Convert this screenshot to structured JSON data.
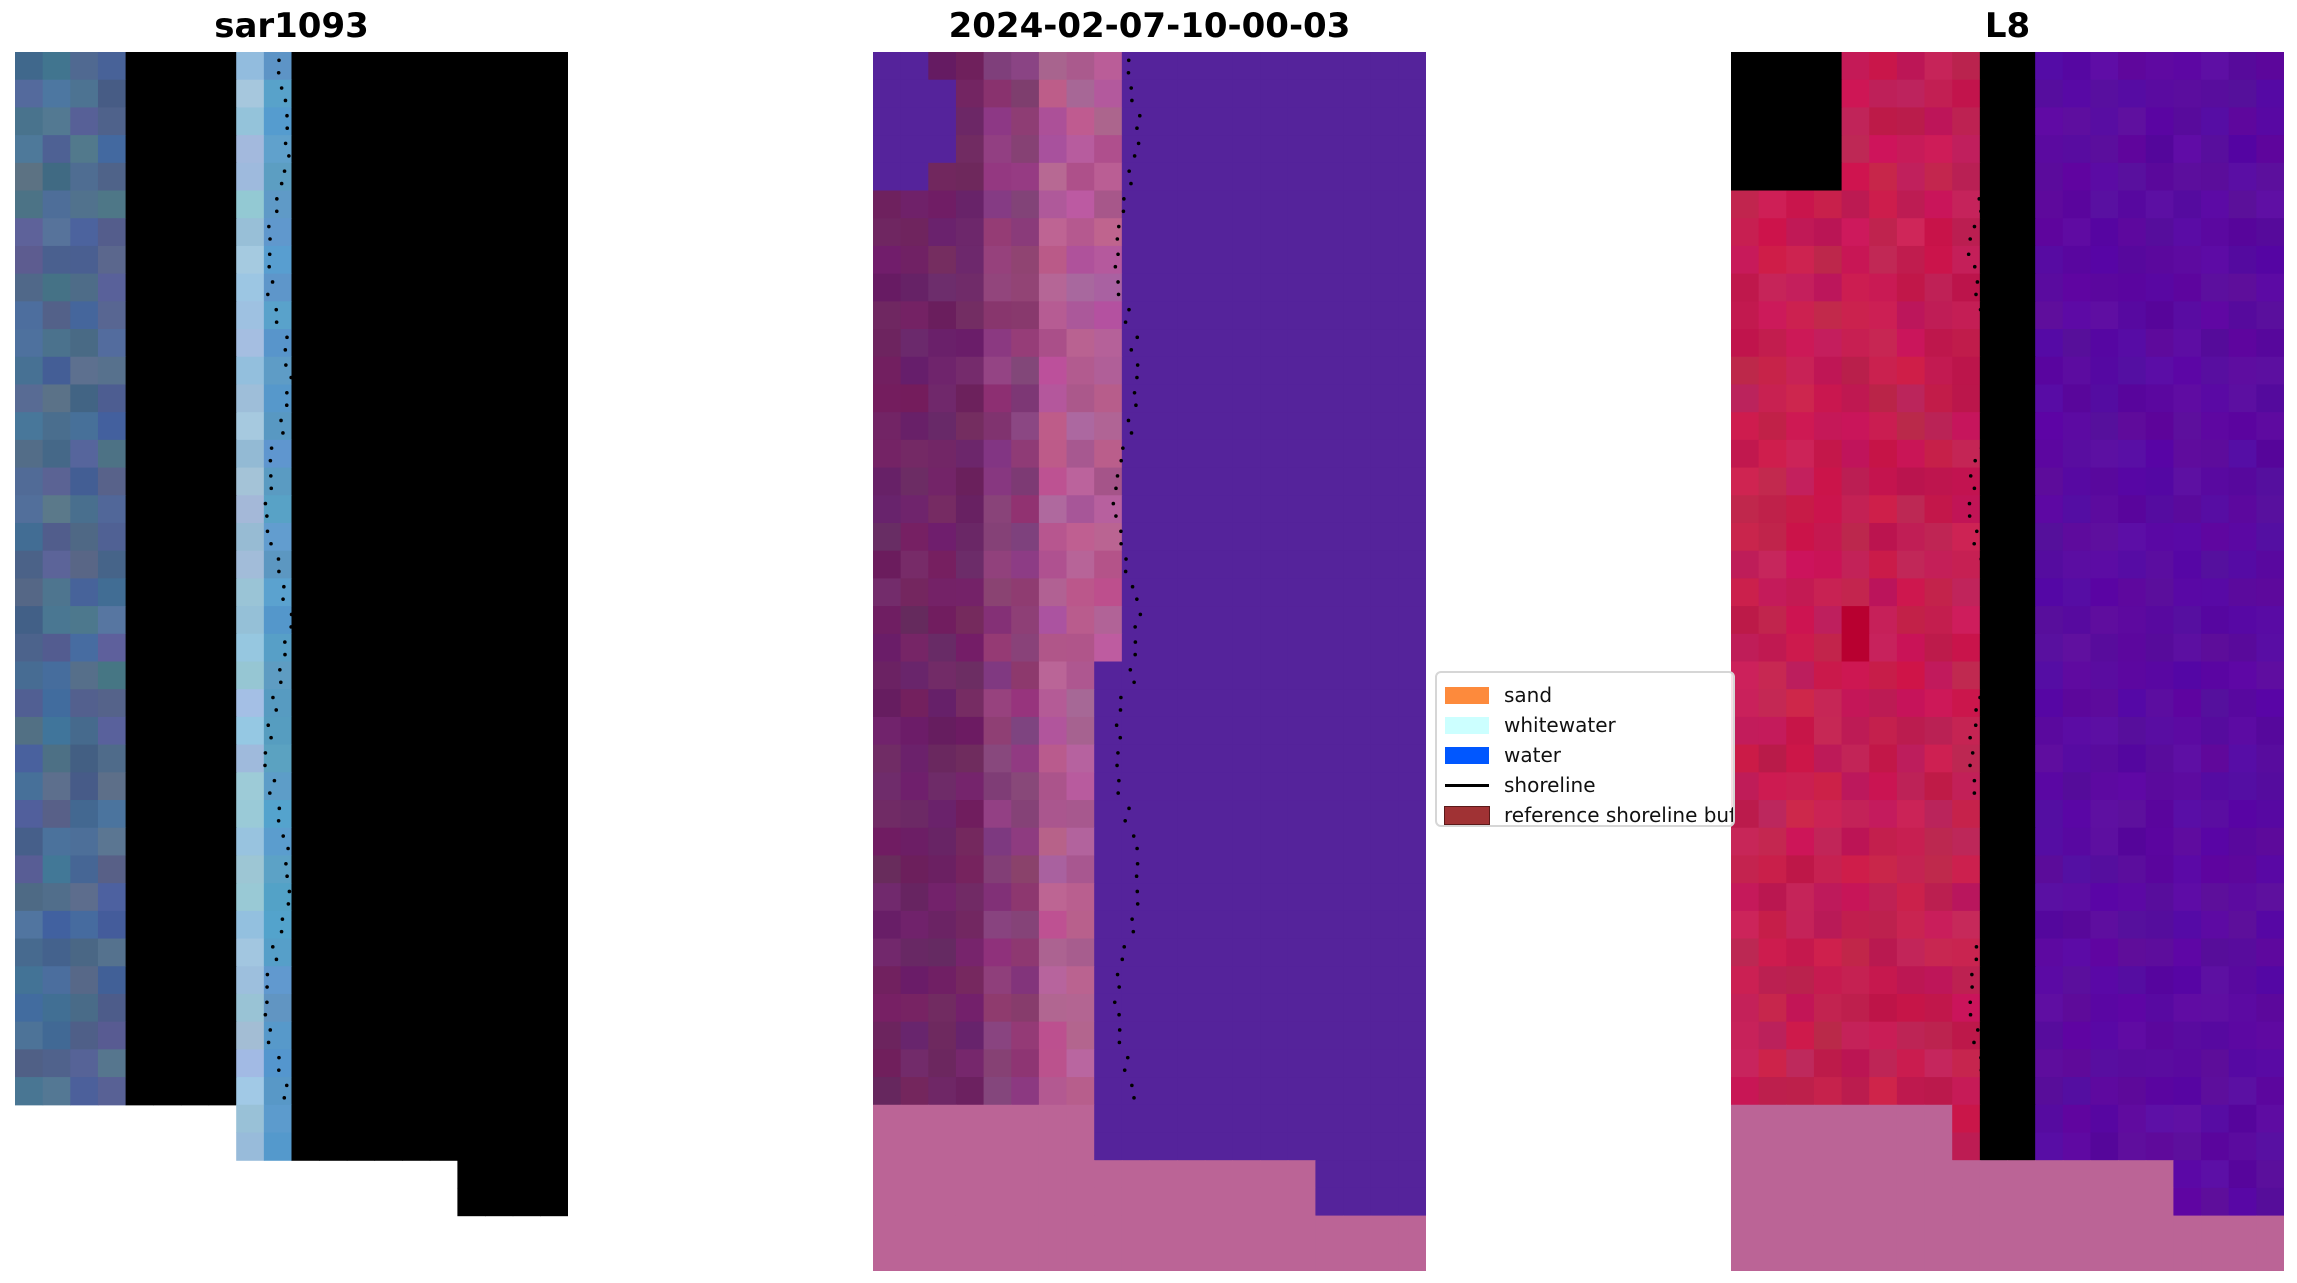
{
  "panels": [
    {
      "title": "sar1093",
      "style": "sar"
    },
    {
      "title": "2024-02-07-10-00-03",
      "style": "classified"
    },
    {
      "title": "L8",
      "style": "index"
    }
  ],
  "legend": {
    "items": [
      {
        "label": "sand",
        "type": "patch",
        "color": "#fd8a3c"
      },
      {
        "label": "whitewater",
        "type": "patch",
        "color": "#ccffff"
      },
      {
        "label": "water",
        "type": "patch",
        "color": "#0057ff"
      },
      {
        "label": "shoreline",
        "type": "line",
        "color": "#000000"
      },
      {
        "label": "reference shoreline buffer",
        "type": "patch",
        "color": "#a03234"
      }
    ]
  },
  "colors": {
    "sar_water": "#2f6a9e",
    "sar_land": "#4f6a92",
    "classified_water": "#55239b",
    "classified_nodata": "#bb6496",
    "index_water": "#5a0aa0",
    "index_land": "#c41e52",
    "shoreline_points": "#000000"
  }
}
